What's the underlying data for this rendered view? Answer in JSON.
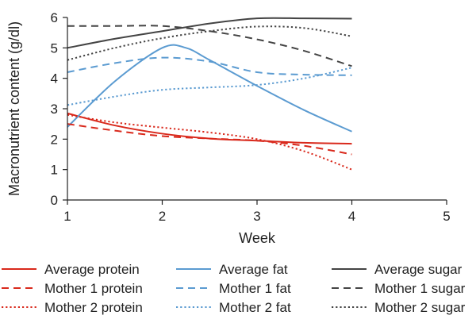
{
  "chart_data": {
    "type": "line",
    "xlabel": "Week",
    "ylabel": "Macronutrient content (g/dl)",
    "xlim": [
      1,
      5
    ],
    "ylim": [
      0,
      6
    ],
    "xticks": [
      "1",
      "2",
      "3",
      "4",
      "5"
    ],
    "yticks": [
      "0",
      "1",
      "2",
      "3",
      "4",
      "5",
      "6"
    ],
    "grid": false,
    "legend_position": "bottom",
    "series": [
      {
        "name": "Average protein",
        "color": "#d9291c",
        "dash": "solid",
        "points": [
          [
            1,
            2.85
          ],
          [
            1.5,
            2.45
          ],
          [
            2,
            2.18
          ],
          [
            2.5,
            2.02
          ],
          [
            3,
            1.95
          ],
          [
            3.5,
            1.88
          ],
          [
            4,
            1.85
          ]
        ]
      },
      {
        "name": "Average fat",
        "color": "#5b9bd1",
        "dash": "solid",
        "points": [
          [
            1,
            2.4
          ],
          [
            1.5,
            3.9
          ],
          [
            2,
            5.0
          ],
          [
            2.25,
            5.0
          ],
          [
            2.5,
            4.6
          ],
          [
            3,
            3.75
          ],
          [
            3.5,
            2.95
          ],
          [
            4,
            2.25
          ]
        ]
      },
      {
        "name": "Average sugar",
        "color": "#444444",
        "dash": "solid",
        "points": [
          [
            1,
            5.0
          ],
          [
            1.5,
            5.3
          ],
          [
            2,
            5.55
          ],
          [
            2.5,
            5.8
          ],
          [
            3,
            5.97
          ],
          [
            3.5,
            5.97
          ],
          [
            4,
            5.96
          ]
        ]
      },
      {
        "name": "Mother 1 protein",
        "color": "#d9291c",
        "dash": "dashed",
        "points": [
          [
            1,
            2.5
          ],
          [
            1.5,
            2.28
          ],
          [
            2,
            2.1
          ],
          [
            2.5,
            2.02
          ],
          [
            3,
            1.95
          ],
          [
            3.5,
            1.78
          ],
          [
            4,
            1.5
          ]
        ]
      },
      {
        "name": "Mother 1 fat",
        "color": "#5b9bd1",
        "dash": "dashed",
        "points": [
          [
            1,
            4.2
          ],
          [
            1.5,
            4.5
          ],
          [
            2,
            4.68
          ],
          [
            2.5,
            4.55
          ],
          [
            3,
            4.2
          ],
          [
            3.5,
            4.12
          ],
          [
            4,
            4.1
          ]
        ]
      },
      {
        "name": "Mother 1 sugar",
        "color": "#444444",
        "dash": "dashed",
        "points": [
          [
            1,
            5.72
          ],
          [
            1.5,
            5.72
          ],
          [
            2,
            5.72
          ],
          [
            2.5,
            5.55
          ],
          [
            3,
            5.28
          ],
          [
            3.5,
            4.9
          ],
          [
            4,
            4.4
          ]
        ]
      },
      {
        "name": "Mother 2 protein",
        "color": "#d9291c",
        "dash": "dotted",
        "points": [
          [
            1,
            2.8
          ],
          [
            1.5,
            2.55
          ],
          [
            2,
            2.38
          ],
          [
            2.5,
            2.22
          ],
          [
            3,
            2.0
          ],
          [
            3.5,
            1.6
          ],
          [
            4,
            1.0
          ]
        ]
      },
      {
        "name": "Mother 2 fat",
        "color": "#5b9bd1",
        "dash": "dotted",
        "points": [
          [
            1,
            3.12
          ],
          [
            1.5,
            3.4
          ],
          [
            2,
            3.62
          ],
          [
            2.5,
            3.7
          ],
          [
            3,
            3.78
          ],
          [
            3.5,
            4.0
          ],
          [
            4,
            4.35
          ]
        ]
      },
      {
        "name": "Mother 2 sugar",
        "color": "#444444",
        "dash": "dotted",
        "points": [
          [
            1,
            4.6
          ],
          [
            1.5,
            5.0
          ],
          [
            2,
            5.32
          ],
          [
            2.5,
            5.55
          ],
          [
            3,
            5.7
          ],
          [
            3.5,
            5.65
          ],
          [
            4,
            5.38
          ]
        ]
      }
    ]
  }
}
